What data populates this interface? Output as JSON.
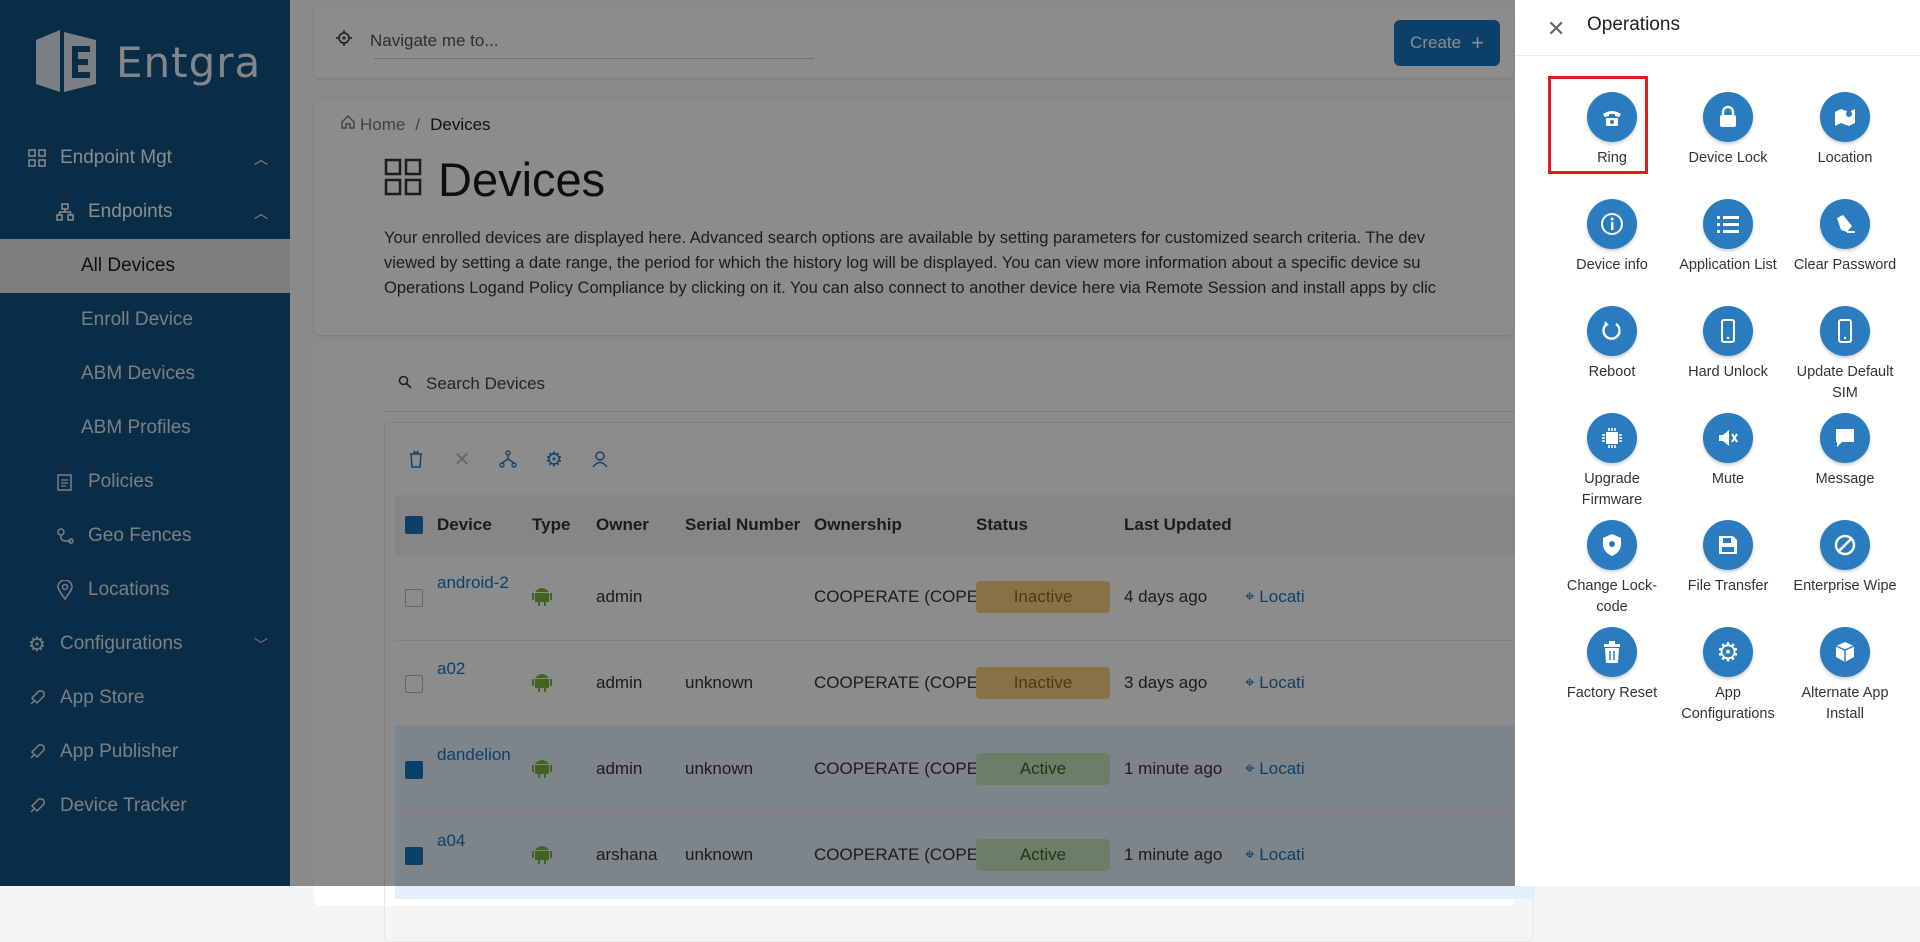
{
  "brand": {
    "name": "Entgra"
  },
  "sidebar": {
    "items": [
      {
        "label": "Endpoint Mgt",
        "icon": "grid-icon"
      },
      {
        "label": "Endpoints",
        "icon": "hierarchy-icon"
      },
      {
        "label": "All Devices"
      },
      {
        "label": "Enroll Device"
      },
      {
        "label": "ABM Devices"
      },
      {
        "label": "ABM Profiles"
      },
      {
        "label": "Policies",
        "icon": "clipboard-icon"
      },
      {
        "label": "Geo Fences",
        "icon": "geofence-icon"
      },
      {
        "label": "Locations",
        "icon": "map-pin-icon"
      },
      {
        "label": "Configurations",
        "icon": "gear-icon"
      },
      {
        "label": "App Store",
        "icon": "rocket-icon"
      },
      {
        "label": "App Publisher",
        "icon": "rocket-icon"
      },
      {
        "label": "Device Tracker",
        "icon": "rocket-icon"
      }
    ]
  },
  "topbar": {
    "navigate_placeholder": "Navigate me to...",
    "create_label": "Create"
  },
  "breadcrumb": {
    "home": "Home",
    "current": "Devices"
  },
  "page": {
    "title": "Devices",
    "desc_line1": "Your enrolled devices are displayed here. Advanced search options are available by setting parameters for customized search criteria. The dev",
    "desc_line2": "viewed by setting a date range, the period for which the history log will be displayed. You can view more information about a specific device su",
    "desc_line3": "Operations Logand Policy Compliance by clicking on it. You can also connect to another device here via Remote Session and install apps by clic"
  },
  "search": {
    "placeholder": "Search Devices"
  },
  "table": {
    "headers": [
      "Device",
      "Type",
      "Owner",
      "Serial Number",
      "Ownership",
      "Status",
      "Last Updated"
    ],
    "rows": [
      {
        "device": "android-2",
        "owner": "admin",
        "serial": "",
        "ownership": "COOPERATE (COPE)",
        "status": "Inactive",
        "updated": "4 days ago",
        "loc": "Locati",
        "checked": false
      },
      {
        "device": "a02",
        "owner": "admin",
        "serial": "unknown",
        "ownership": "COOPERATE (COPE)",
        "status": "Inactive",
        "updated": "3 days ago",
        "loc": "Locati",
        "checked": false
      },
      {
        "device": "dandelion",
        "owner": "admin",
        "serial": "unknown",
        "ownership": "COOPERATE (COPE)",
        "status": "Active",
        "updated": "1 minute ago",
        "loc": "Locati",
        "checked": true
      },
      {
        "device": "a04",
        "owner": "arshana",
        "serial": "unknown",
        "ownership": "COOPERATE (COPE)",
        "status": "Active",
        "updated": "1 minute ago",
        "loc": "Locati",
        "checked": true
      }
    ]
  },
  "drawer": {
    "title": "Operations",
    "operations": [
      {
        "label": "Ring",
        "icon": "phone-icon"
      },
      {
        "label": "Device Lock",
        "icon": "lock-icon"
      },
      {
        "label": "Location",
        "icon": "map-icon"
      },
      {
        "label": "Device info",
        "icon": "info-icon"
      },
      {
        "label": "Application List",
        "icon": "list-icon"
      },
      {
        "label": "Clear Password",
        "icon": "eraser-icon"
      },
      {
        "label": "Reboot",
        "icon": "reboot-icon"
      },
      {
        "label": "Hard Unlock",
        "icon": "mobile-icon"
      },
      {
        "label": "Update Default SIM",
        "icon": "mobile-icon"
      },
      {
        "label": "Upgrade Firmware",
        "icon": "chip-icon"
      },
      {
        "label": "Mute",
        "icon": "mute-icon"
      },
      {
        "label": "Message",
        "icon": "message-icon"
      },
      {
        "label": "Change Lock-code",
        "icon": "shield-icon"
      },
      {
        "label": "File Transfer",
        "icon": "save-icon"
      },
      {
        "label": "Enterprise Wipe",
        "icon": "ban-icon"
      },
      {
        "label": "Factory Reset",
        "icon": "trash-icon"
      },
      {
        "label": "App Configurations",
        "icon": "gear-icon"
      },
      {
        "label": "Alternate App Install",
        "icon": "box-icon"
      }
    ]
  },
  "colors": {
    "sidebar": "#125082",
    "accent": "#2b7bbf",
    "highlight": "#e21c1c",
    "inactive": "#f0c878",
    "active": "#bfe3b5"
  }
}
